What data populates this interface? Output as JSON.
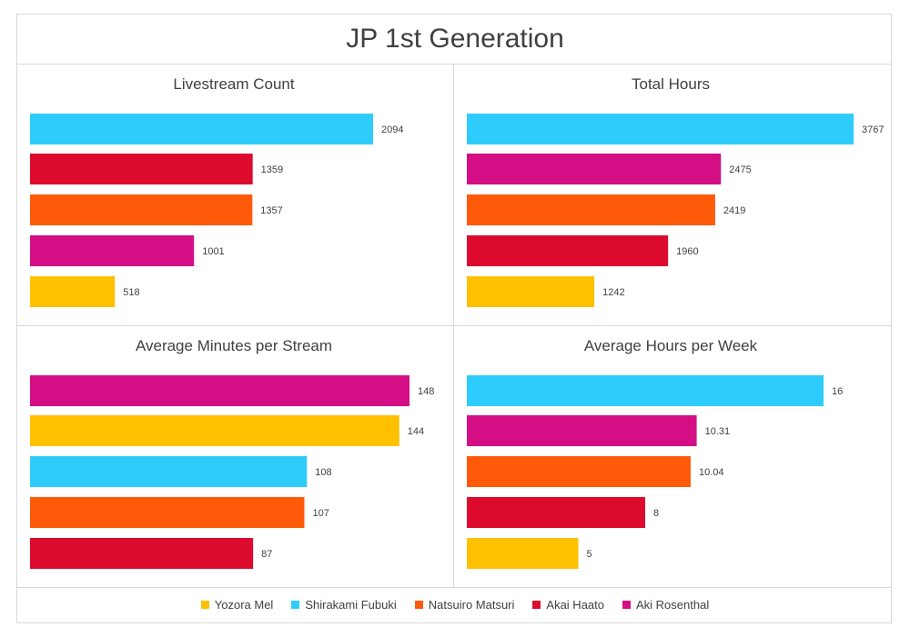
{
  "title": "JP 1st Generation",
  "colors": {
    "Yozora Mel": "#FFC000",
    "Shirakami Fubuki": "#2ECCFA",
    "Natsuiro Matsuri": "#FF5A0A",
    "Akai Haato": "#DC0A2D",
    "Aki Rosenthal": "#D40E85"
  },
  "legend": [
    {
      "name": "Yozora Mel",
      "color": "#FFC000"
    },
    {
      "name": "Shirakami Fubuki",
      "color": "#2ECCFA"
    },
    {
      "name": "Natsuiro Matsuri",
      "color": "#FF5A0A"
    },
    {
      "name": "Akai Haato",
      "color": "#DC0A2D"
    },
    {
      "name": "Aki Rosenthal",
      "color": "#D40E85"
    }
  ],
  "chart_data": [
    {
      "type": "bar",
      "orientation": "horizontal",
      "title": "Livestream Count",
      "categories": [
        "Shirakami Fubuki",
        "Akai Haato",
        "Natsuiro Matsuri",
        "Aki Rosenthal",
        "Yozora Mel"
      ],
      "values": [
        2094,
        1359,
        1357,
        1001,
        518
      ],
      "labels": [
        "2094",
        "1359",
        "1357",
        "1001",
        "518"
      ],
      "xlim": [
        0,
        2200
      ]
    },
    {
      "type": "bar",
      "orientation": "horizontal",
      "title": "Total Hours",
      "categories": [
        "Shirakami Fubuki",
        "Aki Rosenthal",
        "Natsuiro Matsuri",
        "Akai Haato",
        "Yozora Mel"
      ],
      "values": [
        3767,
        2475,
        2419,
        1960,
        1242
      ],
      "labels": [
        "3767",
        "2475",
        "2419",
        "1960",
        "1242"
      ],
      "xlim": [
        0,
        3767
      ]
    },
    {
      "type": "bar",
      "orientation": "horizontal",
      "title": "Average Minutes per Stream",
      "categories": [
        "Aki Rosenthal",
        "Yozora Mel",
        "Shirakami Fubuki",
        "Natsuiro Matsuri",
        "Akai Haato"
      ],
      "values": [
        148,
        144,
        108,
        107,
        87
      ],
      "labels": [
        "148",
        "144",
        "108",
        "107",
        "87"
      ],
      "xlim": [
        0,
        160
      ]
    },
    {
      "type": "bar",
      "orientation": "horizontal",
      "title": "Average Hours per Week",
      "categories": [
        "Shirakami Fubuki",
        "Aki Rosenthal",
        "Natsuiro Matsuri",
        "Akai Haato",
        "Yozora Mel"
      ],
      "values": [
        16,
        10.31,
        10.04,
        8,
        5
      ],
      "labels": [
        "16",
        "10.31",
        "10.04",
        "8",
        "5"
      ],
      "xlim": [
        0,
        17
      ]
    }
  ]
}
